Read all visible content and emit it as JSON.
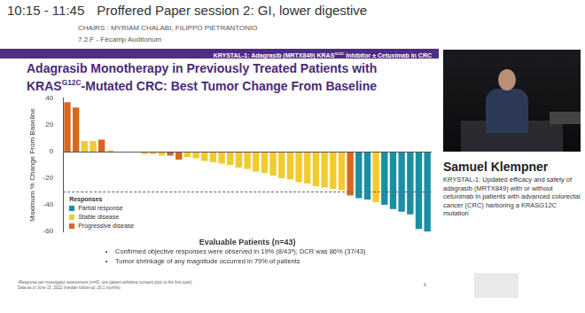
{
  "header": {
    "time": "10:15 - 11:45",
    "session": "Proffered Paper session 2: GI, lower digestive",
    "chairs": "CHAIRS : MYRIAM CHALABI, FILIPPO PIETRANTONIO",
    "room": "7.2.F - Fécamp Auditorium"
  },
  "slide": {
    "banner": [
      {
        "text": "KRYSTAL-1: Adagrasib (MRTX849) KRAS"
      },
      {
        "sup": "G12C"
      },
      {
        "text": " Inhibitor ± Cetuximab in CRC"
      }
    ],
    "title": [
      {
        "text": "Adagrasib Monotherapy in Previously Treated Patients with KRAS"
      },
      {
        "sup": "G12C"
      },
      {
        "text": "-Mutated CRC: Best Tumor Change From Baseline"
      }
    ],
    "bullets": [
      "Confirmed objective responses were observed in 19% (8/43ᵃ); DCR was 86% (37/43)",
      "Tumor shrinkage of any magnitude occurred in 79% of patients"
    ],
    "footnotes": [
      "ᵃResponse per investigator assessment (n=43, one patient withdrew consent prior to the first scan)",
      "Data as of June 15, 2022 (median follow-up: 20.1 months)"
    ],
    "page": "6"
  },
  "speaker": {
    "name": "Samuel Klempner",
    "talk": "KRYSTAL-1: Updated efficacy and safety of adagrasib (MRTX849) with or without cetuximab in patients with advanced colorectal cancer (CRC) harboring a KRASG12C mutation"
  },
  "chart_data": {
    "type": "bar",
    "x_label": "Evaluable Patients (n=43)",
    "y_label": "Maximum % Change From Baseline",
    "categories": [
      null,
      null,
      null,
      null,
      null,
      null,
      null,
      null,
      null,
      null,
      null,
      null,
      null,
      null,
      null,
      null,
      null,
      null,
      null,
      null,
      null,
      null,
      null,
      null,
      null,
      null,
      null,
      null,
      null,
      null,
      null,
      null,
      null,
      null,
      null,
      null,
      null,
      null,
      null,
      null,
      null,
      null,
      null
    ],
    "series": [
      {
        "name": "Partial response",
        "color": "#1a8fa3",
        "values": [
          null,
          null,
          null,
          null,
          null,
          null,
          null,
          null,
          null,
          null,
          null,
          null,
          null,
          null,
          null,
          null,
          null,
          null,
          null,
          null,
          null,
          null,
          null,
          null,
          null,
          null,
          null,
          null,
          null,
          null,
          null,
          null,
          null,
          null,
          -35,
          -36,
          null,
          -40,
          -43,
          -45,
          -47,
          -58,
          -60
        ]
      },
      {
        "name": "Stable disease",
        "color": "#f2cb30",
        "values": [
          null,
          null,
          8,
          8,
          null,
          1,
          0,
          0,
          0,
          -2,
          -2,
          -3,
          null,
          null,
          -4,
          -5,
          -7,
          -8,
          -9,
          -10,
          -12,
          -13,
          -15,
          -16,
          -18,
          -20,
          -21,
          -23,
          -24,
          -26,
          -27,
          -28,
          -29,
          null,
          null,
          null,
          -38,
          null,
          null,
          null,
          null,
          null,
          null
        ]
      },
      {
        "name": "Progressive disease",
        "color": "#d6691f",
        "values": [
          37,
          33,
          null,
          null,
          9,
          null,
          null,
          null,
          null,
          null,
          null,
          null,
          -3,
          -6,
          null,
          null,
          null,
          null,
          null,
          null,
          null,
          null,
          null,
          null,
          null,
          null,
          null,
          null,
          null,
          null,
          null,
          null,
          null,
          -33,
          null,
          null,
          null,
          null,
          null,
          null,
          null,
          null,
          null
        ]
      }
    ],
    "legend_title": "Responses",
    "legend": "lower left",
    "reference_line": -30,
    "ylim": [
      -60,
      40
    ],
    "yticks": [
      -60,
      -40,
      -20,
      0,
      20,
      40
    ],
    "grid": false,
    "tick_labels": "y"
  }
}
